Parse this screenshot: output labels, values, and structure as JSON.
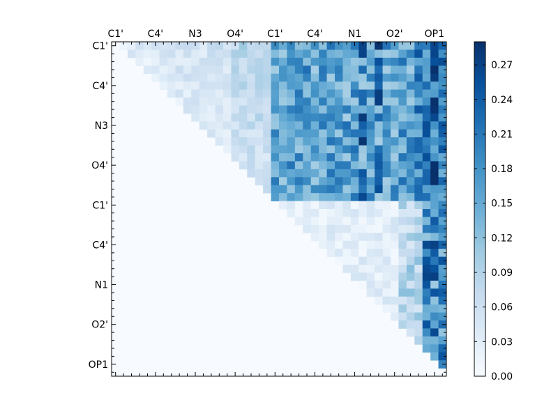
{
  "chart_data": {
    "type": "heatmap",
    "title": "",
    "xlabel": "",
    "ylabel": "",
    "n": 42,
    "colormap": "Blues",
    "color_low": "#f7fbff",
    "color_high": "#08306b",
    "vmin": 0.0,
    "vmax": 0.29,
    "tick_labels": [
      "C1'",
      "C4'",
      "N3",
      "O4'",
      "C1'",
      "C4'",
      "N1",
      "O2'",
      "OP1"
    ],
    "tick_label_indices": [
      0,
      5,
      10,
      15,
      20,
      25,
      30,
      35,
      40
    ],
    "colorbar_ticks": [
      "0.00",
      "0.03",
      "0.06",
      "0.09",
      "0.12",
      "0.15",
      "0.18",
      "0.21",
      "0.24",
      "0.27"
    ],
    "colorbar_values": [
      0.0,
      0.03,
      0.06,
      0.09,
      0.12,
      0.15,
      0.18,
      0.21,
      0.24,
      0.27
    ],
    "description_of_values": "Upper-triangular matrix; lower triangle and diagonal are 0. Block rows 0-19 vs columns 20-41 are strongest (~0.10-0.29); rows 20-41 near-diagonal are weak except the last columns (OP1 region) which are strong (~0.15-0.29).",
    "grid": false,
    "legend": "colorbar-right"
  }
}
